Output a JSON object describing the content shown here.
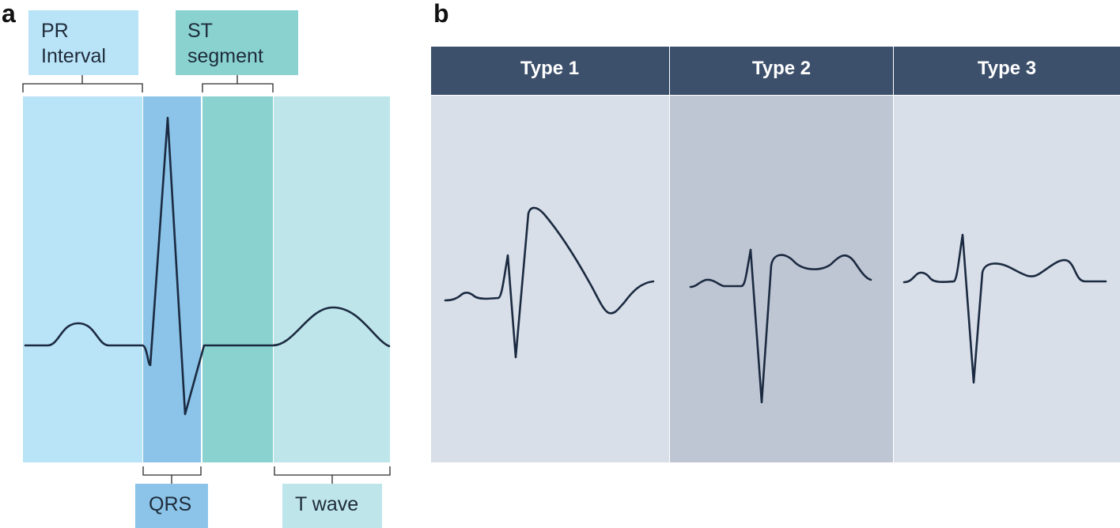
{
  "panel_a": {
    "letter": "a",
    "labels": {
      "pr_line1": "PR",
      "pr_line2": "Interval",
      "st_line1": "ST",
      "st_line2": "segment",
      "qrs": "QRS",
      "t_wave": "T wave"
    },
    "colors": {
      "pr_region": "#b9e3f7",
      "qrs_region": "#8bc4e8",
      "st_region": "#89d2cf",
      "t_region": "#bde5ea",
      "pr_label_box": "#b9e3f7",
      "st_label_box": "#89d2cf",
      "qrs_label_box": "#8bc4e8",
      "t_label_box": "#bde5ea",
      "trace": "#1b2a41"
    }
  },
  "panel_b": {
    "letter": "b",
    "types": [
      {
        "label": "Type 1",
        "background": "#d8dfe8"
      },
      {
        "label": "Type 2",
        "background": "#bfc6d3"
      },
      {
        "label": "Type 3",
        "background": "#d8dfe8"
      }
    ],
    "colors": {
      "header": "#3c4f6b",
      "trace": "#1b2a41"
    }
  }
}
